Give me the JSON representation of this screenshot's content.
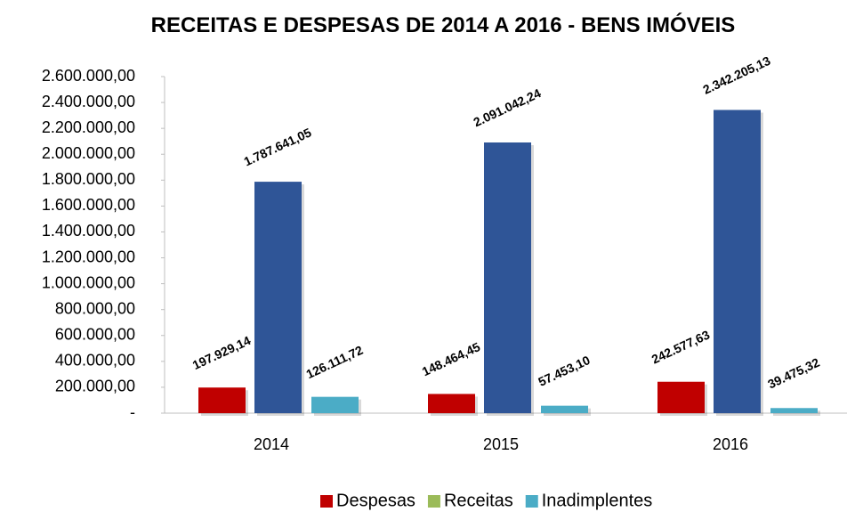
{
  "chart_data": {
    "type": "bar",
    "title": "RECEITAS E DESPESAS DE 2014 A 2016 - BENS IMÓVEIS",
    "categories": [
      "2014",
      "2015",
      "2016"
    ],
    "series": [
      {
        "name": "Despesas",
        "color": "#c00000",
        "label_color": "#ff0000",
        "values": [
          197929.14,
          148464.45,
          242577.63
        ],
        "value_labels": [
          "197.929,14",
          "148.464,45",
          "242.577,63"
        ]
      },
      {
        "name": "Receitas",
        "color": "#2f5597",
        "legend_color": "#9bbb59",
        "label_color": "#4f6228",
        "values": [
          1787641.05,
          2091042.24,
          2342205.13
        ],
        "value_labels": [
          "1.787.641,05",
          "2.091.042,24",
          "2.342.205,13"
        ]
      },
      {
        "name": "Inadimplentes",
        "color": "#4bacc6",
        "label_color": "#2e75b6",
        "values": [
          126111.72,
          57453.1,
          39475.32
        ],
        "value_labels": [
          "126.111,72",
          "57.453,10",
          "39.475,32"
        ]
      }
    ],
    "ylim": [
      0,
      2600000
    ],
    "yticks": [
      {
        "value": 0,
        "label": "-"
      },
      {
        "value": 200000,
        "label": "200.000,00"
      },
      {
        "value": 400000,
        "label": "400.000,00"
      },
      {
        "value": 600000,
        "label": "600.000,00"
      },
      {
        "value": 800000,
        "label": "800.000,00"
      },
      {
        "value": 1000000,
        "label": "1.000.000,00"
      },
      {
        "value": 1200000,
        "label": "1.200.000,00"
      },
      {
        "value": 1400000,
        "label": "1.400.000,00"
      },
      {
        "value": 1600000,
        "label": "1.600.000,00"
      },
      {
        "value": 1800000,
        "label": "1.800.000,00"
      },
      {
        "value": 2000000,
        "label": "2.000.000,00"
      },
      {
        "value": 2200000,
        "label": "2.200.000,00"
      },
      {
        "value": 2400000,
        "label": "2.400.000,00"
      },
      {
        "value": 2600000,
        "label": "2.600.000,00"
      }
    ],
    "legend": "bottom"
  }
}
